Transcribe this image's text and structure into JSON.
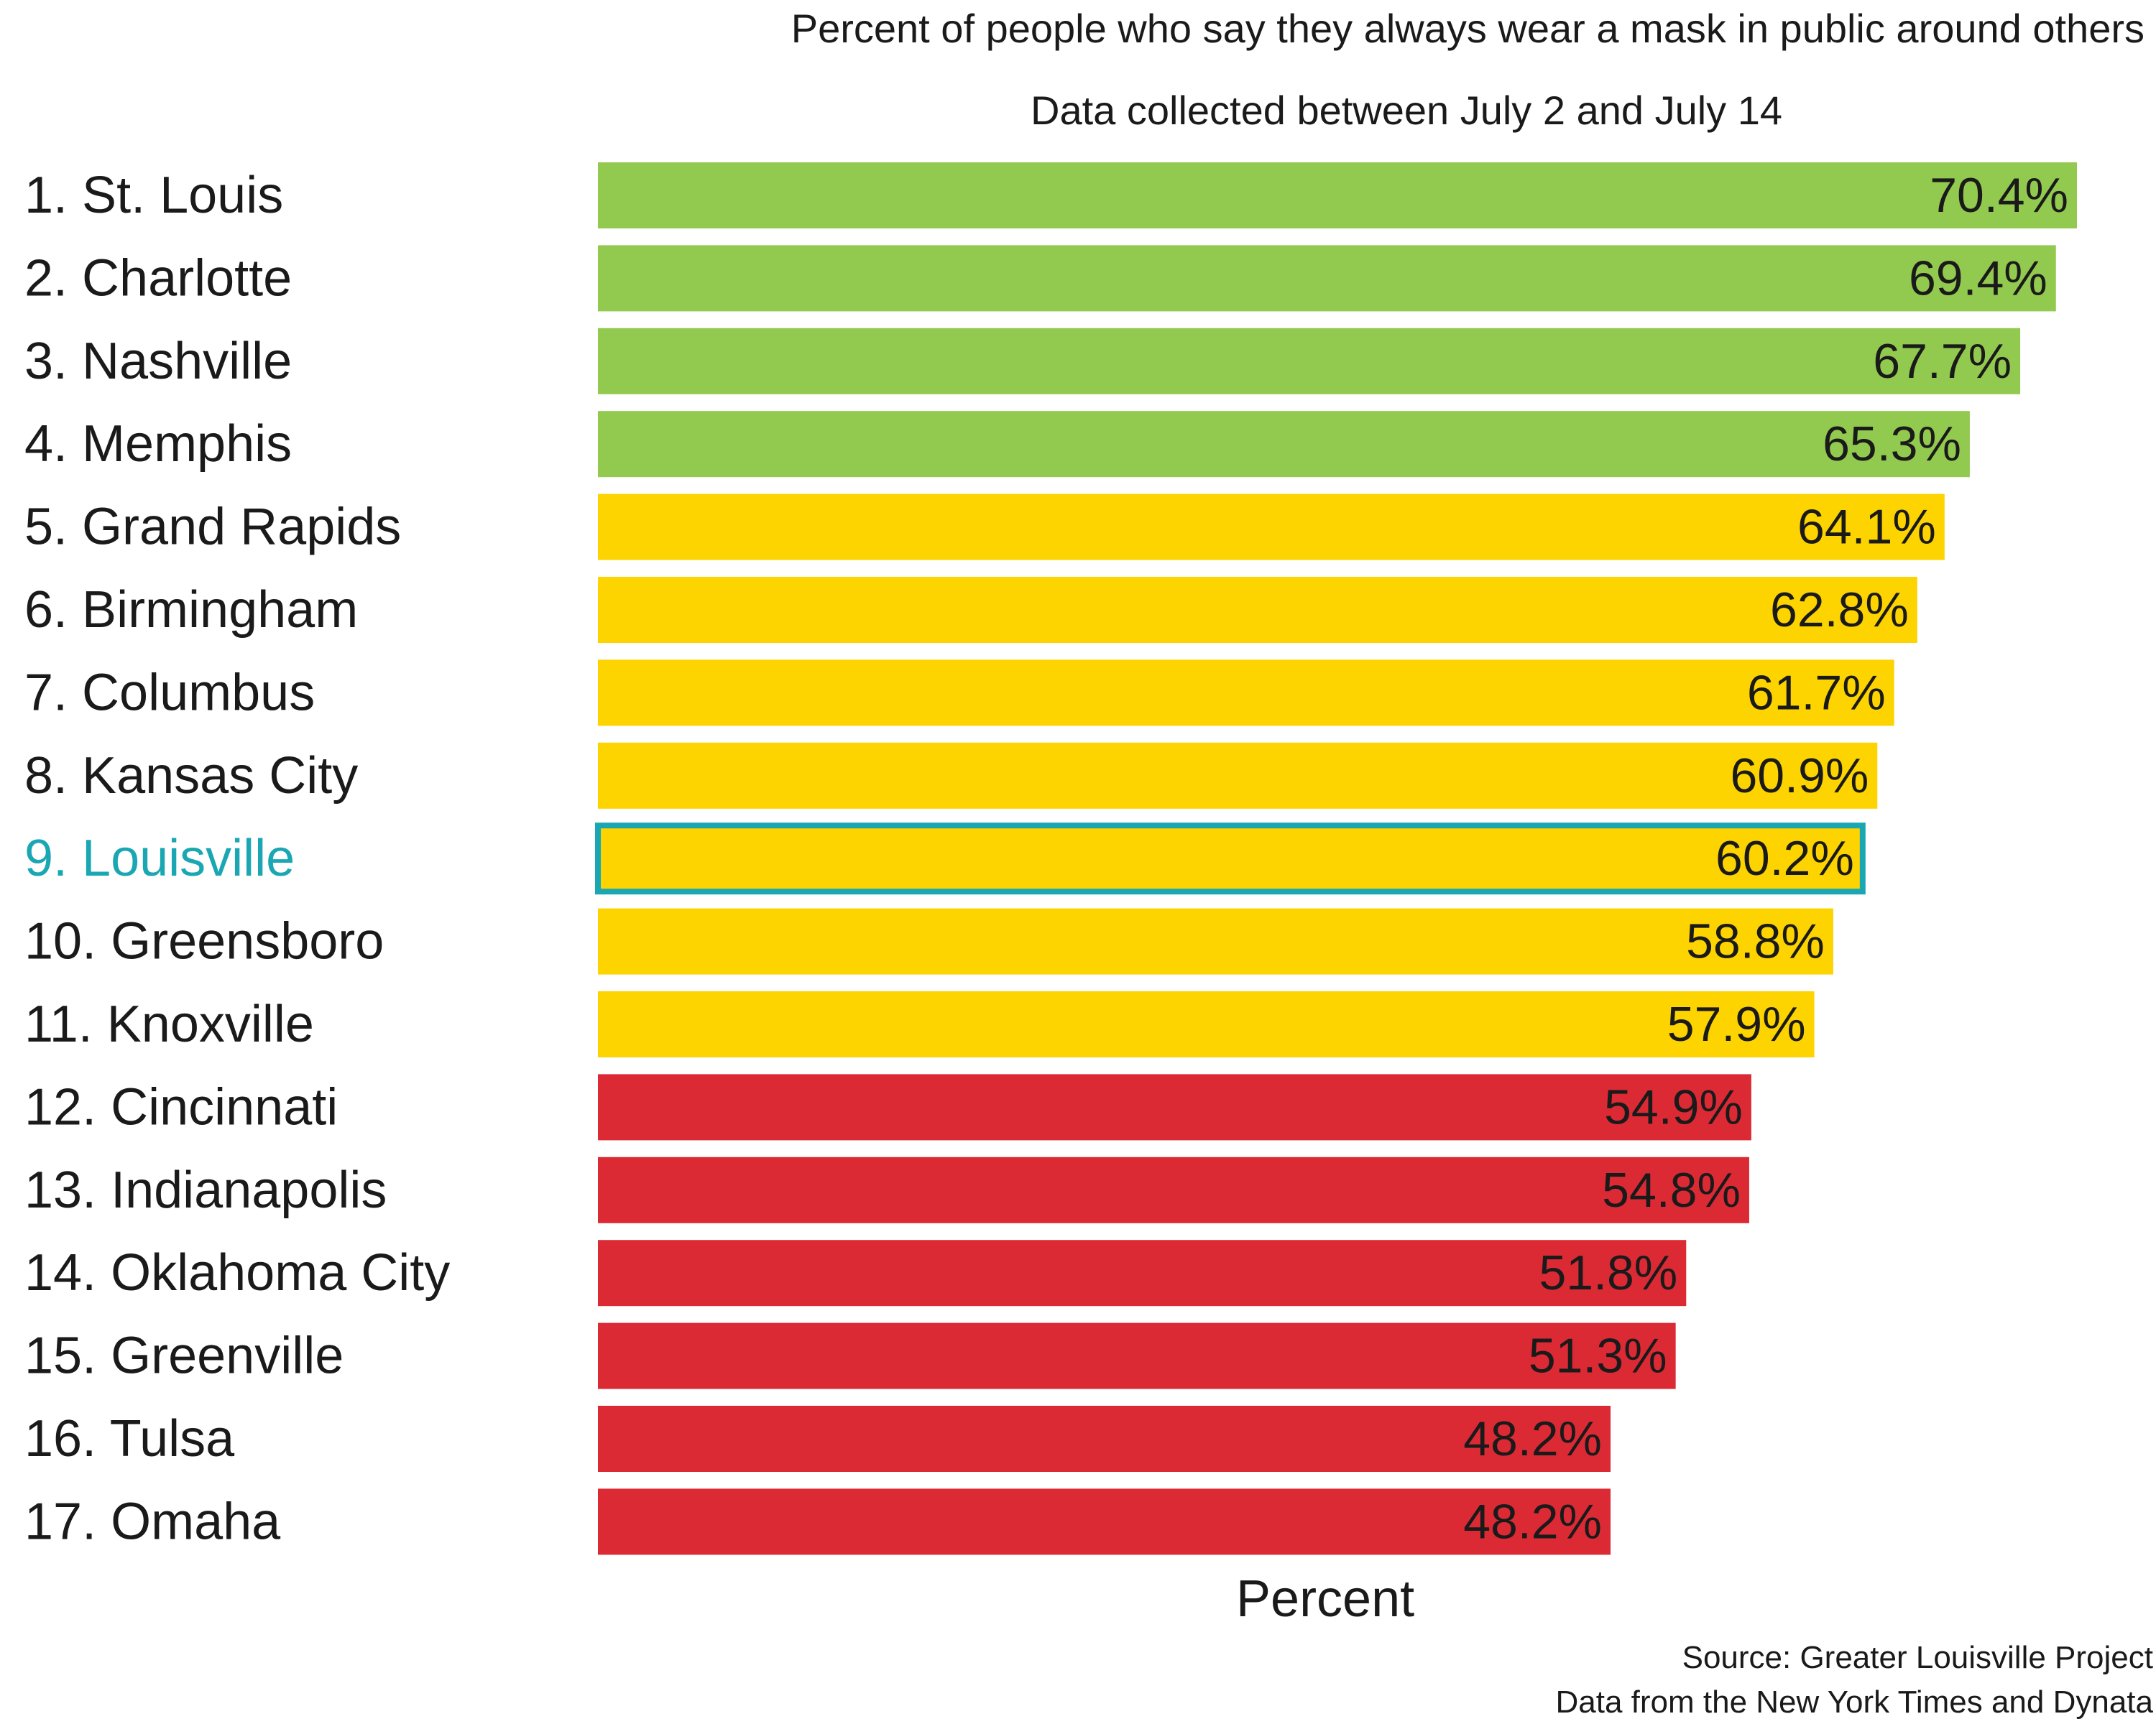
{
  "chart_data": {
    "type": "bar",
    "orientation": "horizontal",
    "title": "Percent of people who say they always wear a mask in public around others",
    "subtitle": "Data collected between July 2 and July 14",
    "xlabel": "Percent",
    "ylabel": "",
    "xlim": [
      0,
      70.4
    ],
    "grid": false,
    "categories": [
      "1. St. Louis",
      "2. Charlotte",
      "3. Nashville",
      "4. Memphis",
      "5. Grand Rapids",
      "6. Birmingham",
      "7. Columbus",
      "8. Kansas City",
      "9. Louisville",
      "10. Greensboro",
      "11. Knoxville",
      "12. Cincinnati",
      "13. Indianapolis",
      "14. Oklahoma City",
      "15. Greenville",
      "16. Tulsa",
      "17. Omaha"
    ],
    "values": [
      70.4,
      69.4,
      67.7,
      65.3,
      64.1,
      62.8,
      61.7,
      60.9,
      60.2,
      58.8,
      57.9,
      54.9,
      54.8,
      51.8,
      51.3,
      48.2,
      48.2
    ],
    "value_labels": [
      "70.4%",
      "69.4%",
      "67.7%",
      "65.3%",
      "64.1%",
      "62.8%",
      "61.7%",
      "60.9%",
      "60.2%",
      "58.8%",
      "57.9%",
      "54.9%",
      "54.8%",
      "51.8%",
      "51.3%",
      "48.2%",
      "48.2%"
    ],
    "bar_colors": [
      "#92c94f",
      "#92c94f",
      "#92c94f",
      "#92c94f",
      "#fdd300",
      "#fdd300",
      "#fdd300",
      "#fdd300",
      "#fdd300",
      "#fdd300",
      "#fdd300",
      "#dc2a35",
      "#dc2a35",
      "#dc2a35",
      "#dc2a35",
      "#dc2a35",
      "#dc2a35"
    ],
    "highlight_index": 8,
    "highlight_color": "#1aa7b3"
  },
  "footer": {
    "source": "Source: Greater Louisville Project",
    "credit": "Data from the New York Times and Dynata"
  }
}
